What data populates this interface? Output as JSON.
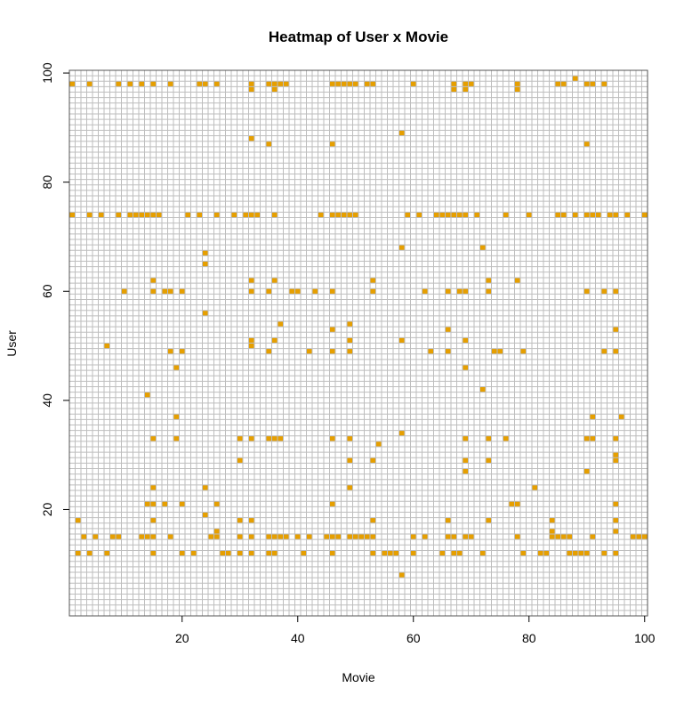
{
  "chart_data": {
    "type": "heatmap",
    "title": "Heatmap of User x Movie",
    "xlabel": "Movie",
    "ylabel": "User",
    "xlim": [
      1,
      100
    ],
    "ylim": [
      1,
      100
    ],
    "x_ticks": [
      20,
      40,
      60,
      80,
      100
    ],
    "y_ticks": [
      20,
      40,
      60,
      80,
      100
    ],
    "grid": true,
    "colors": {
      "filled": "#E69F00",
      "empty": "#FFFFFF",
      "grid": "#BEBEBE",
      "frame": "#555555"
    },
    "cells": [
      [
        1,
        98
      ],
      [
        4,
        98
      ],
      [
        9,
        98
      ],
      [
        11,
        98
      ],
      [
        13,
        98
      ],
      [
        15,
        98
      ],
      [
        18,
        98
      ],
      [
        23,
        98
      ],
      [
        24,
        98
      ],
      [
        26,
        98
      ],
      [
        32,
        98
      ],
      [
        32,
        97
      ],
      [
        35,
        98
      ],
      [
        36,
        98
      ],
      [
        36,
        97
      ],
      [
        37,
        98
      ],
      [
        38,
        98
      ],
      [
        46,
        98
      ],
      [
        47,
        98
      ],
      [
        48,
        98
      ],
      [
        49,
        98
      ],
      [
        50,
        98
      ],
      [
        52,
        98
      ],
      [
        53,
        98
      ],
      [
        60,
        98
      ],
      [
        67,
        98
      ],
      [
        67,
        97
      ],
      [
        69,
        98
      ],
      [
        69,
        97
      ],
      [
        70,
        98
      ],
      [
        78,
        98
      ],
      [
        78,
        97
      ],
      [
        85,
        98
      ],
      [
        86,
        98
      ],
      [
        88,
        99
      ],
      [
        90,
        98
      ],
      [
        91,
        98
      ],
      [
        93,
        98
      ],
      [
        32,
        88
      ],
      [
        35,
        87
      ],
      [
        46,
        87
      ],
      [
        58,
        89
      ],
      [
        90,
        87
      ],
      [
        1,
        74
      ],
      [
        4,
        74
      ],
      [
        6,
        74
      ],
      [
        9,
        74
      ],
      [
        11,
        74
      ],
      [
        12,
        74
      ],
      [
        13,
        74
      ],
      [
        14,
        74
      ],
      [
        15,
        74
      ],
      [
        16,
        74
      ],
      [
        21,
        74
      ],
      [
        23,
        74
      ],
      [
        26,
        74
      ],
      [
        29,
        74
      ],
      [
        31,
        74
      ],
      [
        32,
        74
      ],
      [
        33,
        74
      ],
      [
        36,
        74
      ],
      [
        44,
        74
      ],
      [
        46,
        74
      ],
      [
        47,
        74
      ],
      [
        48,
        74
      ],
      [
        49,
        74
      ],
      [
        50,
        74
      ],
      [
        59,
        74
      ],
      [
        61,
        74
      ],
      [
        64,
        74
      ],
      [
        65,
        74
      ],
      [
        66,
        74
      ],
      [
        67,
        74
      ],
      [
        68,
        74
      ],
      [
        69,
        74
      ],
      [
        71,
        74
      ],
      [
        76,
        74
      ],
      [
        80,
        74
      ],
      [
        85,
        74
      ],
      [
        86,
        74
      ],
      [
        88,
        74
      ],
      [
        90,
        74
      ],
      [
        91,
        74
      ],
      [
        92,
        74
      ],
      [
        94,
        74
      ],
      [
        95,
        74
      ],
      [
        97,
        74
      ],
      [
        100,
        74
      ],
      [
        58,
        68
      ],
      [
        72,
        68
      ],
      [
        24,
        67
      ],
      [
        24,
        65
      ],
      [
        15,
        62
      ],
      [
        32,
        62
      ],
      [
        36,
        62
      ],
      [
        53,
        62
      ],
      [
        73,
        62
      ],
      [
        78,
        62
      ],
      [
        10,
        60
      ],
      [
        15,
        60
      ],
      [
        17,
        60
      ],
      [
        18,
        60
      ],
      [
        20,
        60
      ],
      [
        32,
        60
      ],
      [
        35,
        60
      ],
      [
        39,
        60
      ],
      [
        40,
        60
      ],
      [
        43,
        60
      ],
      [
        46,
        60
      ],
      [
        53,
        60
      ],
      [
        62,
        60
      ],
      [
        66,
        60
      ],
      [
        68,
        60
      ],
      [
        69,
        60
      ],
      [
        73,
        60
      ],
      [
        90,
        60
      ],
      [
        93,
        60
      ],
      [
        95,
        60
      ],
      [
        24,
        56
      ],
      [
        37,
        54
      ],
      [
        49,
        54
      ],
      [
        46,
        53
      ],
      [
        66,
        53
      ],
      [
        95,
        53
      ],
      [
        32,
        51
      ],
      [
        36,
        51
      ],
      [
        49,
        51
      ],
      [
        58,
        51
      ],
      [
        69,
        51
      ],
      [
        7,
        50
      ],
      [
        32,
        50
      ],
      [
        18,
        49
      ],
      [
        20,
        49
      ],
      [
        35,
        49
      ],
      [
        42,
        49
      ],
      [
        46,
        49
      ],
      [
        49,
        49
      ],
      [
        63,
        49
      ],
      [
        66,
        49
      ],
      [
        74,
        49
      ],
      [
        75,
        49
      ],
      [
        79,
        49
      ],
      [
        93,
        49
      ],
      [
        95,
        49
      ],
      [
        19,
        46
      ],
      [
        69,
        46
      ],
      [
        72,
        42
      ],
      [
        14,
        41
      ],
      [
        19,
        37
      ],
      [
        91,
        37
      ],
      [
        96,
        37
      ],
      [
        58,
        34
      ],
      [
        15,
        33
      ],
      [
        19,
        33
      ],
      [
        30,
        33
      ],
      [
        32,
        33
      ],
      [
        35,
        33
      ],
      [
        36,
        33
      ],
      [
        37,
        33
      ],
      [
        46,
        33
      ],
      [
        49,
        33
      ],
      [
        69,
        33
      ],
      [
        73,
        33
      ],
      [
        76,
        33
      ],
      [
        90,
        33
      ],
      [
        91,
        33
      ],
      [
        95,
        33
      ],
      [
        54,
        32
      ],
      [
        95,
        30
      ],
      [
        30,
        29
      ],
      [
        49,
        29
      ],
      [
        53,
        29
      ],
      [
        69,
        29
      ],
      [
        73,
        29
      ],
      [
        95,
        29
      ],
      [
        69,
        27
      ],
      [
        90,
        27
      ],
      [
        15,
        24
      ],
      [
        24,
        24
      ],
      [
        49,
        24
      ],
      [
        81,
        24
      ],
      [
        14,
        21
      ],
      [
        15,
        21
      ],
      [
        17,
        21
      ],
      [
        20,
        21
      ],
      [
        26,
        21
      ],
      [
        46,
        21
      ],
      [
        77,
        21
      ],
      [
        78,
        21
      ],
      [
        95,
        21
      ],
      [
        24,
        19
      ],
      [
        2,
        18
      ],
      [
        15,
        18
      ],
      [
        30,
        18
      ],
      [
        32,
        18
      ],
      [
        53,
        18
      ],
      [
        66,
        18
      ],
      [
        73,
        18
      ],
      [
        84,
        18
      ],
      [
        95,
        18
      ],
      [
        26,
        16
      ],
      [
        84,
        16
      ],
      [
        95,
        16
      ],
      [
        3,
        15
      ],
      [
        5,
        15
      ],
      [
        8,
        15
      ],
      [
        9,
        15
      ],
      [
        13,
        15
      ],
      [
        14,
        15
      ],
      [
        15,
        15
      ],
      [
        18,
        15
      ],
      [
        25,
        15
      ],
      [
        26,
        15
      ],
      [
        30,
        15
      ],
      [
        32,
        15
      ],
      [
        35,
        15
      ],
      [
        36,
        15
      ],
      [
        37,
        15
      ],
      [
        38,
        15
      ],
      [
        40,
        15
      ],
      [
        42,
        15
      ],
      [
        45,
        15
      ],
      [
        46,
        15
      ],
      [
        47,
        15
      ],
      [
        49,
        15
      ],
      [
        50,
        15
      ],
      [
        51,
        15
      ],
      [
        52,
        15
      ],
      [
        53,
        15
      ],
      [
        60,
        15
      ],
      [
        62,
        15
      ],
      [
        66,
        15
      ],
      [
        67,
        15
      ],
      [
        69,
        15
      ],
      [
        70,
        15
      ],
      [
        78,
        15
      ],
      [
        84,
        15
      ],
      [
        85,
        15
      ],
      [
        86,
        15
      ],
      [
        87,
        15
      ],
      [
        91,
        15
      ],
      [
        98,
        15
      ],
      [
        99,
        15
      ],
      [
        100,
        15
      ],
      [
        2,
        12
      ],
      [
        4,
        12
      ],
      [
        7,
        12
      ],
      [
        15,
        12
      ],
      [
        20,
        12
      ],
      [
        22,
        12
      ],
      [
        27,
        12
      ],
      [
        28,
        12
      ],
      [
        30,
        12
      ],
      [
        32,
        12
      ],
      [
        35,
        12
      ],
      [
        36,
        12
      ],
      [
        41,
        12
      ],
      [
        46,
        12
      ],
      [
        53,
        12
      ],
      [
        55,
        12
      ],
      [
        56,
        12
      ],
      [
        57,
        12
      ],
      [
        60,
        12
      ],
      [
        65,
        12
      ],
      [
        67,
        12
      ],
      [
        68,
        12
      ],
      [
        72,
        12
      ],
      [
        79,
        12
      ],
      [
        82,
        12
      ],
      [
        83,
        12
      ],
      [
        87,
        12
      ],
      [
        88,
        12
      ],
      [
        89,
        12
      ],
      [
        90,
        12
      ],
      [
        93,
        12
      ],
      [
        95,
        12
      ],
      [
        58,
        8
      ]
    ]
  }
}
